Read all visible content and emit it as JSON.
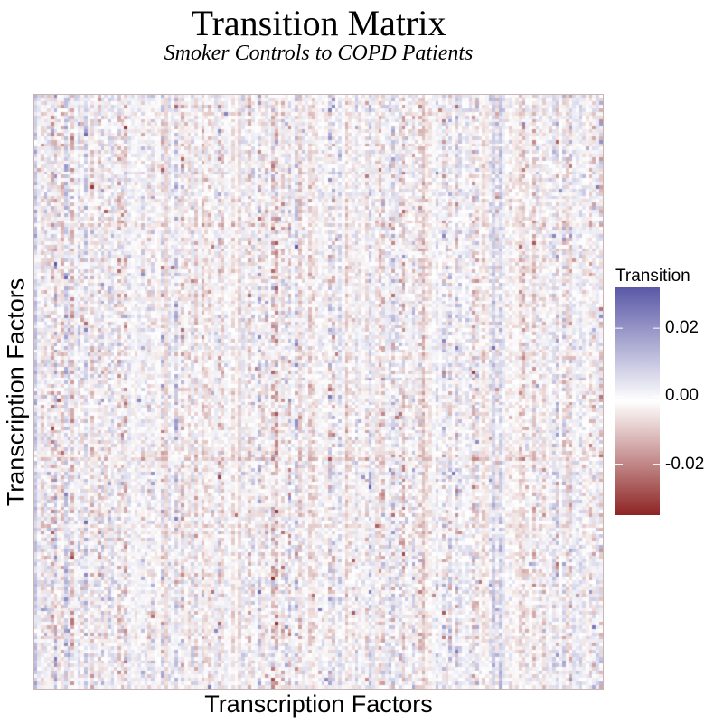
{
  "chart_data": {
    "type": "heatmap",
    "title": "Transition Matrix",
    "subtitle": "Smoker Controls to COPD Patients",
    "xlabel": "Transcription Factors",
    "ylabel": "Transcription Factors",
    "rows": 170,
    "cols": 170,
    "value_range": [
      -0.035,
      0.032
    ],
    "legend": {
      "title": "Transition",
      "placement": "right",
      "ticks": [
        {
          "value": 0.02,
          "label": "0.02"
        },
        {
          "value": 0.0,
          "label": "0.00"
        },
        {
          "value": -0.02,
          "label": "-0.02"
        }
      ]
    },
    "colors": {
      "high": "#5a58a6",
      "mid": "#ffffff",
      "low": "#8e2424"
    },
    "grid": false
  }
}
